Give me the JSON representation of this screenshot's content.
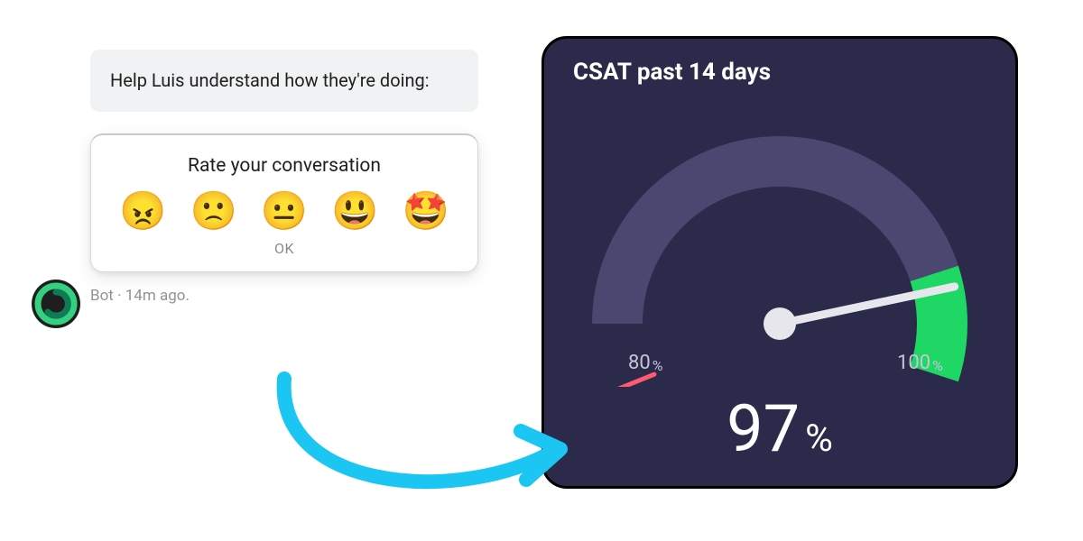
{
  "chat": {
    "bubble_text": "Help Luis understand how they're doing:",
    "bubble_bg": "#f1f2f3",
    "bubble_text_color": "#1f1f1f",
    "rating_title": "Rate your conversation",
    "emojis": [
      "😠",
      "🙁",
      "😐",
      "😃",
      "🤩"
    ],
    "ok_label": "OK",
    "meta_text": "Bot · 14m ago.",
    "meta_color": "#8f9397",
    "bot_avatar": {
      "outer_bg": "#1e1e1e",
      "ring_color": "#35d07f",
      "swirl_color": "#0f7a55"
    }
  },
  "gauge": {
    "type": "gauge",
    "title": "CSAT past 14 days",
    "card_bg": "#2c2a4a",
    "card_border": "#000000",
    "track_color": "#4a4770",
    "track_width": 56,
    "low_marker": {
      "color": "#ff5a6e",
      "angle_deg": 202,
      "width": 5
    },
    "high_zone": {
      "color": "#1fd765",
      "start_deg": 18,
      "end_deg": -18
    },
    "needle": {
      "color": "#e6e6ec",
      "angle_deg": 12,
      "width": 9
    },
    "pivot": {
      "color": "#e6e6ec",
      "radius": 18
    },
    "axis_min_label": "80",
    "axis_max_label": "100",
    "axis_unit": "%",
    "axis_color": "#c7c6d8",
    "value": "97",
    "value_unit": "%",
    "value_color": "#ffffff",
    "min": 80,
    "max": 100
  },
  "arrow": {
    "color": "#1bc7f2",
    "stroke_width": 16
  }
}
